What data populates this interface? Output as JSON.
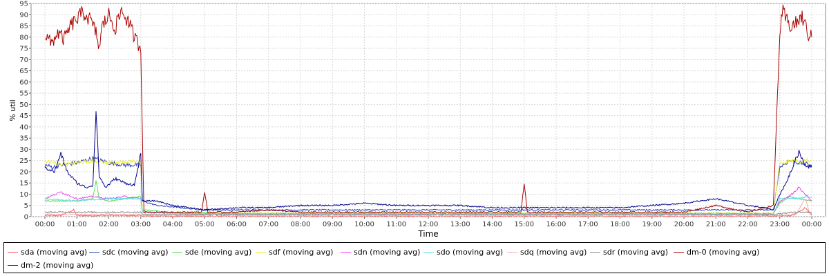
{
  "chart_data": {
    "type": "line",
    "title": "",
    "xlabel": "Time",
    "ylabel": "% util",
    "ylim": [
      0,
      95
    ],
    "xlim": [
      "00:00",
      "24:00"
    ],
    "yticks": [
      0,
      5,
      10,
      15,
      20,
      25,
      30,
      35,
      40,
      45,
      50,
      55,
      60,
      65,
      70,
      75,
      80,
      85,
      90,
      95
    ],
    "xticks": [
      "00:00",
      "01:00",
      "02:00",
      "03:00",
      "04:00",
      "05:00",
      "06:00",
      "07:00",
      "08:00",
      "09:00",
      "10:00",
      "11:00",
      "12:00",
      "13:00",
      "14:00",
      "15:00",
      "16:00",
      "17:00",
      "18:00",
      "19:00",
      "20:00",
      "21:00",
      "22:00",
      "23:00",
      "00:00"
    ],
    "grid": true,
    "legend_position": "bottom",
    "series": [
      {
        "name": "sda (moving avg)",
        "color": "#ff5555",
        "x": [
          0,
          0.5,
          0.9,
          1.0,
          1.5,
          2.0,
          2.5,
          2.9,
          3.05,
          5,
          8,
          12,
          15,
          18,
          21,
          22.9,
          23.4,
          23.8,
          24
        ],
        "y": [
          0.5,
          0.5,
          3,
          0.5,
          0.5,
          0.6,
          0.5,
          0.5,
          0.3,
          0.2,
          0.2,
          0.2,
          0.2,
          0.2,
          0.2,
          0.3,
          0.5,
          4,
          0.5
        ]
      },
      {
        "name": "sdc (moving avg)",
        "color": "#2a3fbf",
        "x": [
          0,
          0.25,
          0.5,
          1.0,
          1.5,
          2.0,
          2.5,
          3.0,
          3.05,
          3.5,
          5,
          7,
          9,
          11,
          13,
          15,
          17,
          19,
          21,
          22.8,
          23.0,
          23.3,
          23.6,
          24
        ],
        "y": [
          23,
          22,
          23,
          24,
          26,
          24,
          23,
          23,
          7,
          5,
          3,
          3,
          3,
          3,
          3,
          3,
          3,
          3,
          3,
          3,
          22,
          25,
          24,
          23
        ]
      },
      {
        "name": "sde (moving avg)",
        "color": "#55dd55",
        "x": [
          0,
          0.5,
          1.0,
          1.5,
          1.6,
          1.7,
          2.0,
          2.5,
          3.0,
          3.05,
          4,
          6,
          8,
          10,
          12,
          14,
          16,
          18,
          20,
          22.8,
          23.0,
          23.3,
          23.6,
          24
        ],
        "y": [
          7,
          7,
          7,
          8,
          16,
          8,
          7,
          8,
          9,
          3,
          2,
          1.5,
          1.5,
          1.5,
          1.5,
          1.5,
          1.5,
          1.5,
          1.5,
          1.5,
          6,
          9,
          8,
          7
        ]
      },
      {
        "name": "sdf (moving avg)",
        "color": "#eeee33",
        "x": [
          0,
          0.5,
          1.0,
          1.5,
          2.0,
          2.5,
          3.0,
          3.05,
          5,
          10,
          15,
          20,
          22.8,
          23.0,
          23.5,
          24
        ],
        "y": [
          25,
          23,
          24,
          25,
          24,
          24,
          25,
          2,
          1.5,
          1.5,
          1.5,
          1.5,
          1.5,
          24,
          25,
          25
        ]
      },
      {
        "name": "sdn (moving avg)",
        "color": "#ee44ee",
        "x": [
          0,
          0.5,
          1.0,
          1.5,
          2.0,
          2.5,
          3.0,
          3.05,
          5,
          10,
          15,
          20,
          22.8,
          23.0,
          23.3,
          23.6,
          24
        ],
        "y": [
          8,
          11,
          8,
          9,
          8,
          9,
          8,
          2,
          1.2,
          1.2,
          1.2,
          1.2,
          1.2,
          7,
          9,
          13,
          7
        ]
      },
      {
        "name": "sdo (moving avg)",
        "color": "#55ddee",
        "x": [
          0,
          1,
          2,
          3,
          3.05,
          5,
          10,
          15,
          20,
          22.8,
          23.0,
          23.5,
          24
        ],
        "y": [
          8,
          7,
          8,
          8,
          2,
          1.2,
          1.2,
          1.2,
          1.2,
          1.2,
          8,
          8,
          9
        ]
      },
      {
        "name": "sdq (moving avg)",
        "color": "#ffaaaa",
        "x": [
          0,
          1,
          2,
          3,
          3.05,
          6,
          12,
          18,
          22.8,
          23.5,
          23.8,
          23.9,
          24
        ],
        "y": [
          1,
          1,
          1,
          1,
          0.5,
          0.4,
          0.4,
          0.4,
          0.4,
          1,
          8,
          3,
          1
        ]
      },
      {
        "name": "sdr (moving avg)",
        "color": "#888888",
        "x": [
          0,
          1,
          2,
          3,
          3.05,
          6,
          12,
          18,
          22.8,
          23.5,
          24
        ],
        "y": [
          2,
          2,
          2,
          2,
          1,
          1,
          1,
          1,
          1,
          2,
          2
        ]
      },
      {
        "name": "dm-0 (moving avg)",
        "color": "#aa0000",
        "x": [
          0,
          0.2,
          0.4,
          0.6,
          0.8,
          1.0,
          1.2,
          1.4,
          1.6,
          1.7,
          1.8,
          2.0,
          2.2,
          2.4,
          2.6,
          2.8,
          3.0,
          3.1,
          4,
          4.9,
          5,
          5.1,
          6,
          7,
          8,
          9,
          10,
          11,
          12,
          13,
          14,
          14.9,
          15,
          15.1,
          16,
          17,
          18,
          19,
          20,
          21,
          22,
          22.8,
          23.0,
          23.1,
          23.3,
          23.5,
          23.7,
          23.9,
          24
        ],
        "y": [
          81,
          77,
          82,
          79,
          85,
          88,
          91,
          88,
          82,
          75,
          85,
          90,
          84,
          92,
          87,
          80,
          75,
          2,
          2,
          2,
          11,
          2,
          2,
          3,
          2,
          2,
          2,
          2,
          2,
          2,
          2,
          2,
          15,
          2,
          2,
          2,
          2,
          2,
          2,
          5,
          2,
          5,
          82,
          91,
          85,
          86,
          89,
          81,
          80
        ]
      },
      {
        "name": "dm-2 (moving avg)",
        "color": "#000088",
        "x": [
          0,
          0.3,
          0.5,
          0.7,
          1.0,
          1.3,
          1.5,
          1.6,
          1.7,
          1.9,
          2.2,
          2.5,
          2.8,
          3.0,
          3.05,
          3.5,
          4,
          5,
          6,
          7,
          8,
          9,
          10,
          11,
          12,
          13,
          14,
          15,
          16,
          17,
          18,
          19,
          20,
          21,
          22,
          22.5,
          22.8,
          23.0,
          23.2,
          23.4,
          23.6,
          23.8,
          24
        ],
        "y": [
          22,
          20,
          28,
          20,
          15,
          13,
          14,
          47,
          18,
          13,
          17,
          15,
          14,
          28,
          7,
          7,
          5,
          3,
          4,
          4,
          5,
          5,
          6,
          5,
          5,
          5,
          4,
          4,
          4,
          4,
          4,
          5,
          6,
          8,
          5,
          4,
          3,
          10,
          15,
          22,
          29,
          23,
          22
        ]
      }
    ]
  }
}
